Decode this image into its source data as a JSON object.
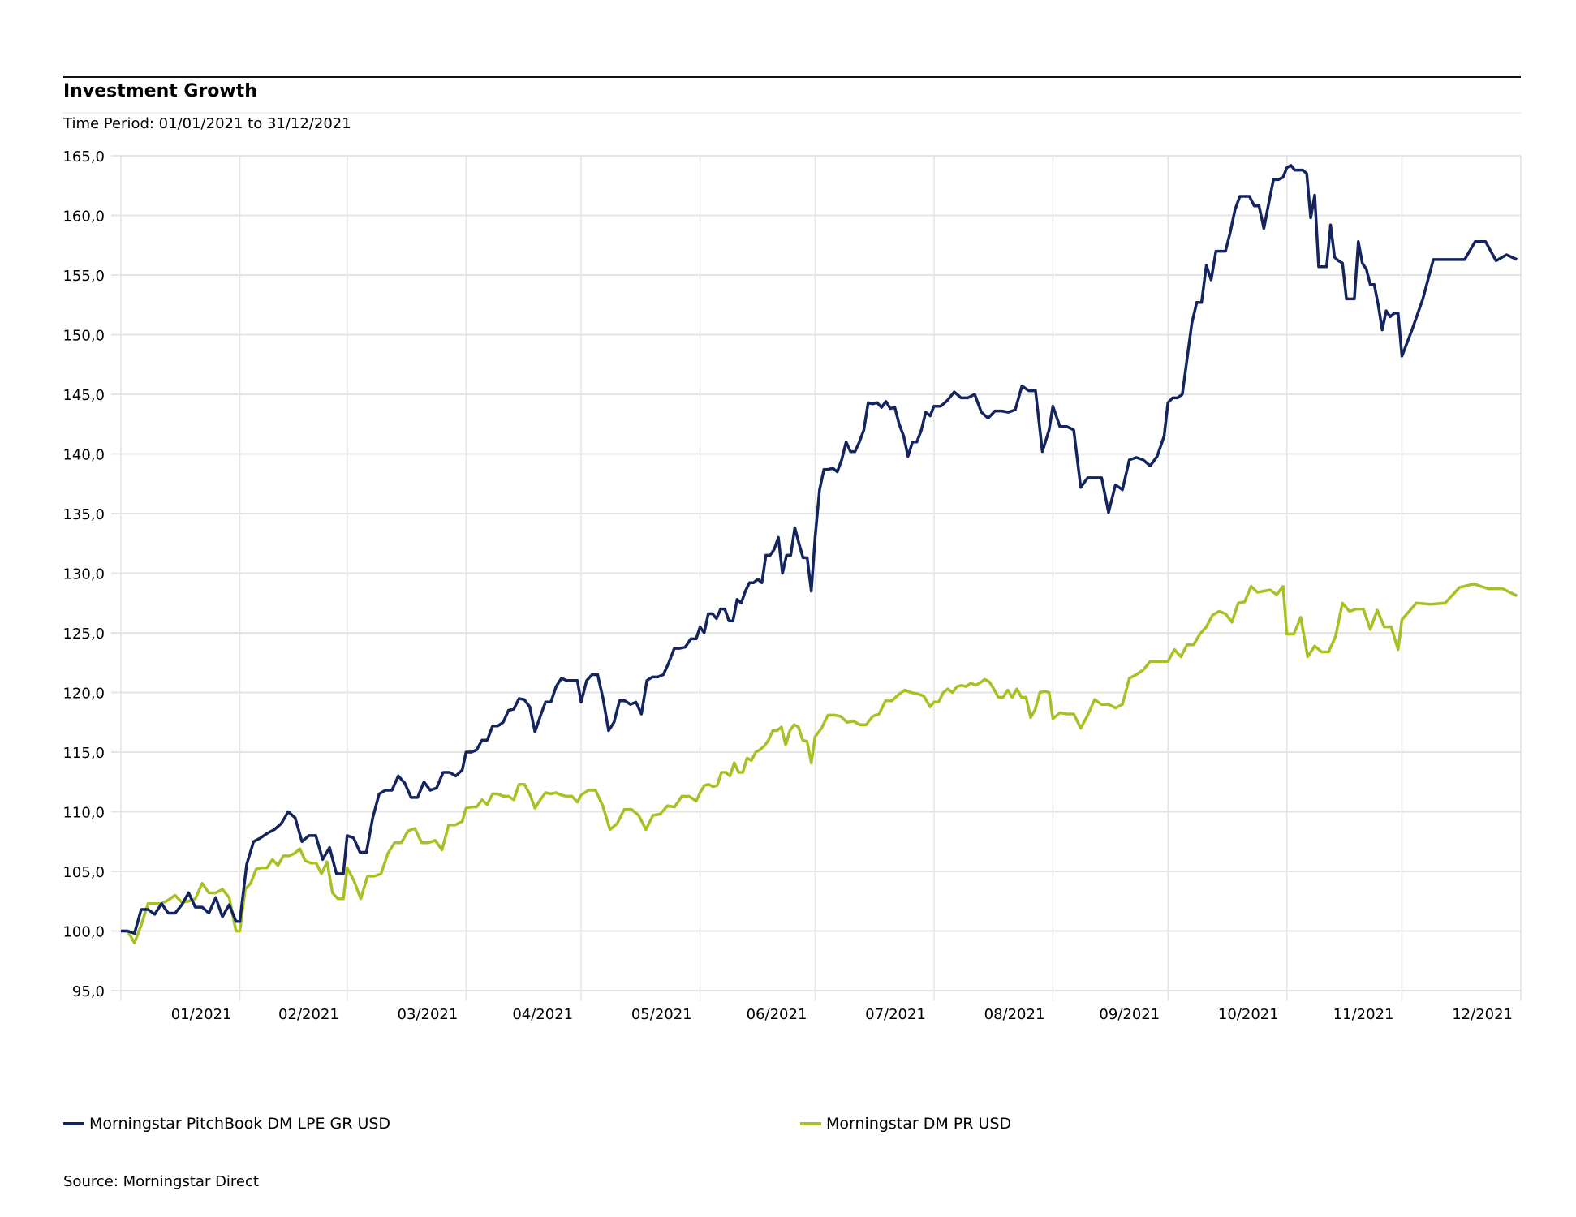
{
  "header": {
    "title": "Investment Growth",
    "subtitle": "Time Period: 01/01/2021 to 31/12/2021"
  },
  "footer": {
    "source": "Source: Morningstar Direct"
  },
  "chart_data": {
    "type": "line",
    "title": "Investment Growth",
    "subtitle": "Time Period: 01/01/2021 to 31/12/2021",
    "xlabel": "",
    "ylabel": "",
    "ylim": [
      95,
      165
    ],
    "y_ticks": [
      95,
      100,
      105,
      110,
      115,
      120,
      125,
      130,
      135,
      140,
      145,
      150,
      155,
      160,
      165
    ],
    "y_tick_labels": [
      "95,0",
      "100,0",
      "105,0",
      "110,0",
      "115,0",
      "120,0",
      "125,0",
      "130,0",
      "135,0",
      "140,0",
      "145,0",
      "150,0",
      "155,0",
      "160,0",
      "165,0"
    ],
    "x_tick_labels": [
      "01/2021",
      "02/2021",
      "03/2021",
      "04/2021",
      "05/2021",
      "06/2021",
      "07/2021",
      "08/2021",
      "09/2021",
      "10/2021",
      "11/2021",
      "12/2021"
    ],
    "x_note": "values listed per month, evenly spaced within each month",
    "grid": true,
    "legend_position": "bottom",
    "series": [
      {
        "name": "Morningstar PitchBook DM LPE GR USD",
        "color": "#14245e",
        "months": [
          [
            100,
            100,
            99.8,
            101.8,
            101.8,
            101.4,
            102.3,
            101.5,
            101.5,
            102.2,
            103.2,
            102,
            102,
            101.5,
            102.8,
            101.2,
            102.2,
            100.8
          ],
          [
            100.8,
            105.6,
            107.5,
            107.8,
            108.2,
            108.5,
            109,
            110,
            109.5,
            107.5,
            108,
            108,
            106,
            107,
            104.8,
            104.8
          ],
          [
            108,
            107.8,
            106.6,
            106.6,
            109.5,
            111.5,
            111.8,
            111.8,
            113,
            112.4,
            111.2,
            111.2,
            112.5,
            111.8,
            112,
            113.3,
            113.3,
            113,
            113.5
          ],
          [
            115,
            115,
            115.2,
            116,
            116,
            117.2,
            117.2,
            117.5,
            118.5,
            118.6,
            119.5,
            119.4,
            118.8,
            116.7,
            118,
            119.2,
            119.2,
            120.5,
            121.2,
            121,
            121,
            121
          ],
          [
            119.2,
            121,
            121.5,
            121.5,
            119.5,
            116.8,
            117.5,
            119.3,
            119.3,
            119,
            119.2,
            118.2,
            121,
            121.3,
            121.3,
            121.5,
            122.5,
            123.7,
            123.7,
            123.8,
            124.5,
            124.5
          ],
          [
            125.5,
            125,
            126.6,
            126.6,
            126.2,
            127,
            127,
            126,
            126,
            127.8,
            127.5,
            128.5,
            129.2,
            129.2,
            129.5,
            129.2,
            131.5,
            131.5,
            132,
            133,
            130,
            131.5,
            131.5,
            133.8,
            132.5,
            131.3,
            131.3,
            128.5
          ],
          [
            133,
            137,
            138.7,
            138.7,
            138.8,
            138.5,
            139.5,
            141,
            140.2,
            140.2,
            141,
            142,
            144.3,
            144.2,
            144.3,
            143.9,
            144.4,
            143.8,
            143.9,
            142.5,
            141.5,
            139.8,
            141,
            141,
            142,
            143.5,
            143.2
          ],
          [
            144,
            144,
            144.5,
            145.2,
            144.7,
            144.7,
            145,
            143.5,
            143,
            143.6,
            143.6,
            143.5,
            143.7,
            145.7,
            145.3,
            145.3,
            140.2,
            142
          ],
          [
            144,
            142.3,
            142.3,
            142,
            137.2,
            138,
            138,
            138,
            135.1,
            137.4,
            137,
            139.5,
            139.7,
            139.5,
            139,
            139.8,
            141.5
          ],
          [
            144.3,
            144.7,
            144.7,
            145,
            148,
            151,
            152.7,
            152.7,
            155.8,
            154.6,
            157,
            157,
            157,
            158.6,
            160.5,
            161.6,
            161.6,
            161.6,
            160.8,
            160.8,
            158.9,
            161,
            163,
            163,
            163.2
          ],
          [
            164,
            164.2,
            163.8,
            163.8,
            163.8,
            163.5,
            159.8,
            161.7,
            155.7,
            155.7,
            155.7,
            159.2,
            156.5,
            156.2,
            156,
            153,
            153,
            153,
            157.8,
            156,
            155.5,
            154.2,
            154.2,
            152.5,
            150.4,
            152,
            151.5,
            151.8,
            151.8
          ],
          [
            148.2,
            150.5,
            153,
            156.3,
            156.3,
            156.3,
            156.3,
            157.8,
            157.8,
            156.2,
            156.7,
            156.3
          ]
        ]
      },
      {
        "name": "Morningstar DM PR USD",
        "color": "#a8c024",
        "months": [
          [
            100,
            100,
            99,
            100.5,
            102.3,
            102.3,
            102.3,
            102.6,
            103,
            102.4,
            102.5,
            102.7,
            104,
            103.2,
            103.2,
            103.5,
            102.8,
            100
          ],
          [
            100,
            103.5,
            104,
            105.2,
            105.3,
            105.3,
            106,
            105.5,
            106.3,
            106.3,
            106.5,
            106.9,
            105.9,
            105.7,
            105.7,
            104.8,
            105.8,
            103.2,
            102.7,
            102.7
          ],
          [
            105.3,
            104.2,
            102.7,
            104.6,
            104.6,
            104.8,
            106.5,
            107.4,
            107.4,
            108.4,
            108.6,
            107.4,
            107.4,
            107.6,
            106.8,
            108.9,
            108.9,
            109.2
          ],
          [
            110.3,
            110.4,
            110.4,
            111,
            110.6,
            111.5,
            111.5,
            111.3,
            111.3,
            111,
            112.3,
            112.3,
            111.5,
            110.3,
            111,
            111.6,
            111.5,
            111.6,
            111.4,
            111.3,
            111.3,
            110.8
          ],
          [
            111.4,
            111.8,
            111.8,
            110.5,
            108.5,
            109,
            110.2,
            110.2,
            109.7,
            108.5,
            109.7,
            109.8,
            110.5,
            110.4,
            111.3,
            111.3,
            110.9
          ],
          [
            111.6,
            112.2,
            112.3,
            112.1,
            112.2,
            113.3,
            113.3,
            113,
            114.1,
            113.3,
            113.3,
            114.5,
            114.3,
            115,
            115.2,
            115.5,
            116,
            116.8,
            116.8,
            117.1,
            115.6,
            116.8,
            117.3,
            117.1,
            116,
            115.9,
            114.1
          ],
          [
            116.3,
            117,
            118.1,
            118.1,
            118,
            117.5,
            117.6,
            117.3,
            117.3,
            118,
            118.2,
            119.3,
            119.3,
            119.8,
            120.2,
            120,
            119.9,
            119.7,
            118.8
          ],
          [
            119.2,
            119.2,
            120,
            120.3,
            120,
            120.5,
            120.6,
            120.5,
            120.8,
            120.6,
            120.8,
            121.1,
            120.9,
            120.3,
            119.6,
            119.6,
            120.2,
            119.6,
            120.3,
            119.6,
            119.6,
            117.9,
            118.6,
            120,
            120.1,
            120
          ],
          [
            117.8,
            118.3,
            118.2,
            118.2,
            117,
            118.1,
            119.4,
            119,
            119,
            118.7,
            119,
            121.2,
            121.5,
            121.9,
            122.6,
            122.6,
            122.6
          ],
          [
            122.6,
            123.6,
            123,
            124,
            124,
            124.9,
            125.5,
            126.5,
            126.8,
            126.6,
            125.9,
            127.5,
            127.6,
            128.9,
            128.4,
            128.5,
            128.6,
            128.2,
            128.9
          ],
          [
            124.9,
            124.9,
            126.3,
            123,
            123.9,
            123.4,
            123.4,
            124.7,
            127.5,
            126.8,
            127,
            127,
            125.3,
            126.9,
            125.5,
            125.5,
            123.6
          ],
          [
            126.1,
            127.5,
            127.4,
            127.5,
            128.8,
            129.1,
            128.7,
            128.7,
            128.1
          ]
        ]
      }
    ]
  }
}
